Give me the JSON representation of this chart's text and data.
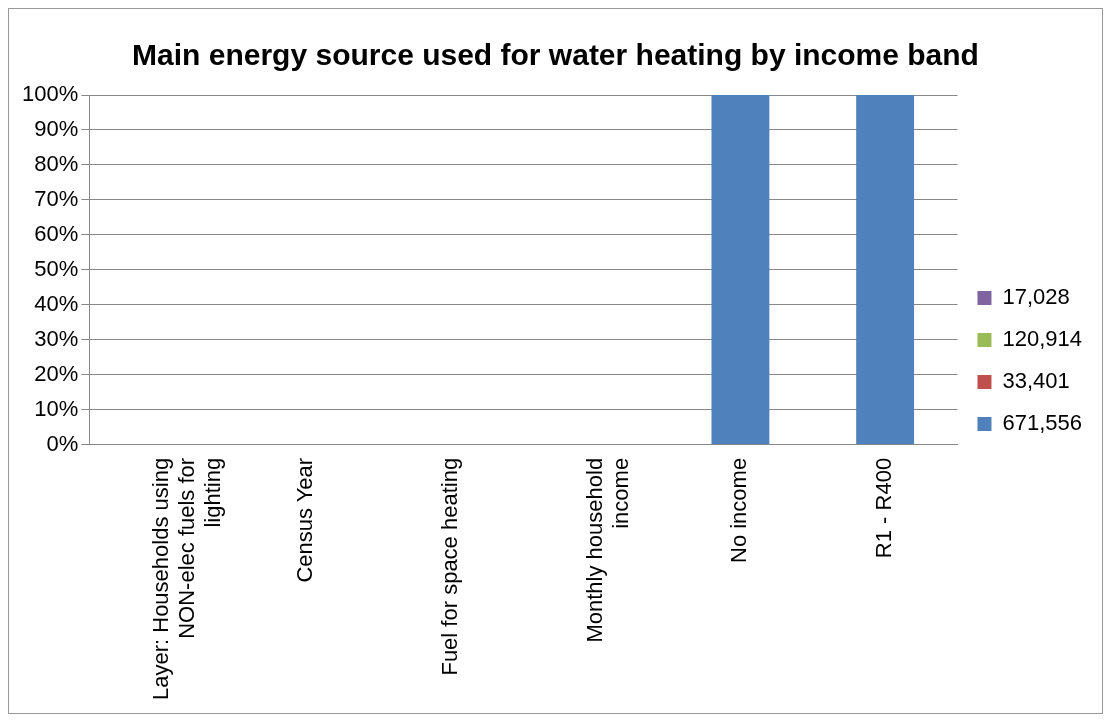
{
  "chart_data": {
    "type": "bar",
    "title": "Main energy source used for water heating by income band",
    "stacked": true,
    "categories": [
      "Layer: Households using NON-elec fuels for lighting",
      "Census Year",
      "Fuel for space heating",
      "Monthly household income",
      "No income",
      "R1 - R400"
    ],
    "series": [
      {
        "name": "671,556",
        "color": "#4f81bd",
        "values": [
          null,
          null,
          null,
          null,
          100,
          100
        ]
      },
      {
        "name": "33,401",
        "color": "#c0504d",
        "values": [
          null,
          null,
          null,
          null,
          0,
          0
        ]
      },
      {
        "name": "120,914",
        "color": "#9bbb59",
        "values": [
          null,
          null,
          null,
          null,
          0,
          0
        ]
      },
      {
        "name": "17,028",
        "color": "#8064a2",
        "values": [
          null,
          null,
          null,
          null,
          0,
          0
        ]
      }
    ],
    "ylim": [
      0,
      100
    ],
    "yticks": [
      {
        "value": 0,
        "label": "0%"
      },
      {
        "value": 10,
        "label": "10%"
      },
      {
        "value": 20,
        "label": "20%"
      },
      {
        "value": 30,
        "label": "30%"
      },
      {
        "value": 40,
        "label": "40%"
      },
      {
        "value": 50,
        "label": "50%"
      },
      {
        "value": 60,
        "label": "60%"
      },
      {
        "value": 70,
        "label": "70%"
      },
      {
        "value": 80,
        "label": "80%"
      },
      {
        "value": 90,
        "label": "90%"
      },
      {
        "value": 100,
        "label": "100%"
      }
    ],
    "grid": "y",
    "legend": "right"
  }
}
